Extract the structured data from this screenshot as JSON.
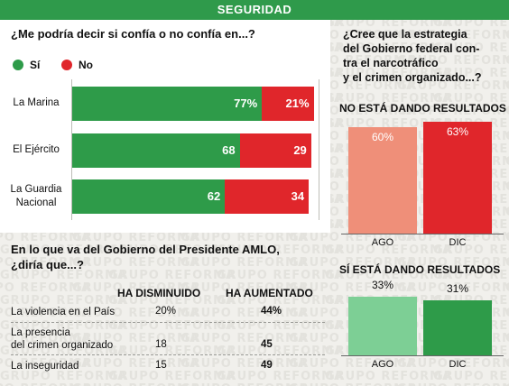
{
  "header": {
    "title": "SEGURIDAD"
  },
  "watermark": "GRUPO REFORMA",
  "trust": {
    "question": "¿Me podría decir si confía o no confía en...?",
    "legend": [
      {
        "label": "Sí",
        "color": "#2e9b49"
      },
      {
        "label": "No",
        "color": "#e0262b"
      }
    ]
  },
  "government": {
    "question_line1": "En lo que va del Gobierno del Presidente AMLO,",
    "question_line2": "¿diría que...?",
    "headers": [
      "HA DISMINUIDO",
      "HA AUMENTADO"
    ],
    "rows": [
      {
        "label": "La violencia en el País",
        "disminuido": "20%",
        "aumentado": "44%"
      },
      {
        "label": "La presencia\ndel crimen organizado",
        "disminuido": "18",
        "aumentado": "45"
      },
      {
        "label": "La inseguridad",
        "disminuido": "15",
        "aumentado": "49"
      }
    ]
  },
  "strategy": {
    "question": "¿Cree que la estrategia\ndel Gobierno federal con-\ntra el narcotráfico\ny el crimen organizado...?",
    "no_title": "NO ESTÁ DANDO RESULTADOS",
    "si_title": "SÍ ESTÁ DANDO RESULTADOS"
  },
  "chart_data": [
    {
      "type": "bar",
      "orientation": "horizontal",
      "stacked": true,
      "title": "¿Me podría decir si confía o no confía en...?",
      "categories": [
        "La Marina",
        "El Ejército",
        "La Guardia\nNacional"
      ],
      "series": [
        {
          "name": "Sí",
          "values": [
            77,
            68,
            62
          ],
          "labels": [
            "77%",
            "68",
            "62"
          ],
          "color": "#2e9b49"
        },
        {
          "name": "No",
          "values": [
            21,
            29,
            34
          ],
          "labels": [
            "21%",
            "29",
            "34"
          ],
          "color": "#e0262b"
        }
      ],
      "xlim": [
        0,
        100
      ]
    },
    {
      "type": "bar",
      "title": "NO ESTÁ DANDO RESULTADOS",
      "categories": [
        "AGO",
        "DIC"
      ],
      "values": [
        60,
        63
      ],
      "labels": [
        "60%",
        "63%"
      ],
      "colors": [
        "#ef8f79",
        "#e0262b"
      ],
      "ylim": [
        0,
        63
      ]
    },
    {
      "type": "bar",
      "title": "SÍ ESTÁ DANDO RESULTADOS",
      "categories": [
        "AGO",
        "DIC"
      ],
      "values": [
        33,
        31
      ],
      "labels": [
        "33%",
        "31%"
      ],
      "colors": [
        "#7dcf95",
        "#2e9b49"
      ],
      "ylim": [
        0,
        63
      ]
    }
  ]
}
